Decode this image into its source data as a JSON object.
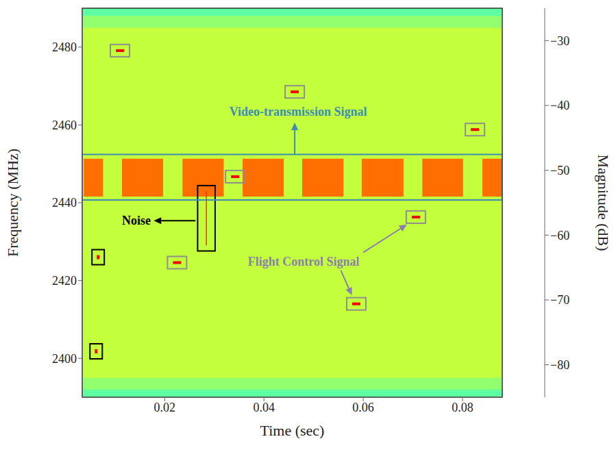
{
  "chart_data": {
    "type": "heatmap",
    "xlabel": "Time (sec)",
    "ylabel": "Frequency (MHz)",
    "xlim": [
      0.0034,
      0.088
    ],
    "xticks": [
      0.02,
      0.04,
      0.06,
      0.08
    ],
    "ylim": [
      2390,
      2490
    ],
    "yticks": [
      2400,
      2420,
      2440,
      2460,
      2480
    ],
    "cells": [
      {
        "x": [
          0.0034,
          0.088
        ],
        "y": [
          2390,
          2490
        ],
        "value": -51
      },
      {
        "x": [
          0.0034,
          0.088
        ],
        "y": [
          2485,
          2488
        ],
        "value": -54
      },
      {
        "x": [
          0.0034,
          0.088
        ],
        "y": [
          2488,
          2490
        ],
        "value": -57
      },
      {
        "x": [
          0.0034,
          0.088
        ],
        "y": [
          2392,
          2395
        ],
        "value": -54
      },
      {
        "x": [
          0.0034,
          0.088
        ],
        "y": [
          2390,
          2392
        ],
        "value": -57
      },
      {
        "x": [
          0.0037,
          0.0076
        ],
        "y": [
          2441.6,
          2451.3
        ],
        "value": -39
      },
      {
        "x": [
          0.0114,
          0.0197
        ],
        "y": [
          2441.6,
          2451.3
        ],
        "value": -39
      },
      {
        "x": [
          0.0236,
          0.0319
        ],
        "y": [
          2441.6,
          2451.3
        ],
        "value": -39
      },
      {
        "x": [
          0.0357,
          0.044
        ],
        "y": [
          2441.6,
          2451.3
        ],
        "value": -39
      },
      {
        "x": [
          0.0477,
          0.056
        ],
        "y": [
          2441.6,
          2451.3
        ],
        "value": -39
      },
      {
        "x": [
          0.0597,
          0.0681
        ],
        "y": [
          2441.6,
          2451.3
        ],
        "value": -39
      },
      {
        "x": [
          0.0719,
          0.0801
        ],
        "y": [
          2441.6,
          2451.3
        ],
        "value": -39
      },
      {
        "x": [
          0.084,
          0.088
        ],
        "y": [
          2441.6,
          2451.3
        ],
        "value": -39
      }
    ],
    "flight_control_signals": [
      {
        "x": 0.011,
        "y": 2479.1,
        "value": -32
      },
      {
        "x": 0.0462,
        "y": 2468.5,
        "value": -32
      },
      {
        "x": 0.0825,
        "y": 2458.8,
        "value": -32
      },
      {
        "x": 0.0342,
        "y": 2446.7,
        "value": -32
      },
      {
        "x": 0.0706,
        "y": 2436.3,
        "value": -32
      },
      {
        "x": 0.0225,
        "y": 2424.6,
        "value": -32
      },
      {
        "x": 0.0586,
        "y": 2414,
        "value": -32
      }
    ],
    "other_signals": [
      {
        "x": 0.0066,
        "y": 2426,
        "value": -33
      },
      {
        "x": 0.0062,
        "y": 2401.8,
        "value": -33
      }
    ],
    "noise": {
      "x": [
        0.0283,
        0.0285
      ],
      "y": [
        2429,
        2443
      ],
      "value": -35
    },
    "annotations": [
      {
        "text": "Video-transmission Signal",
        "x": 0.0469,
        "y": 2463.5,
        "color": "#3a8db5",
        "box": [
          2440.7,
          2452.4
        ],
        "arrows": [
          {
            "from": [
              0.0462,
              2452.4
            ],
            "to": [
              0.0462,
              2460.6
            ]
          }
        ]
      },
      {
        "text": "Noise",
        "x": 0.0172,
        "y": 2435.4,
        "color": "#000000",
        "arrows": [
          {
            "from": [
              0.0262,
              2435.4
            ],
            "to": [
              0.0178,
              2435.4
            ]
          }
        ]
      },
      {
        "text": "Flight Control Signal",
        "x": 0.048,
        "y": 2424.8,
        "color": "#8a7fae",
        "arrows": [
          {
            "from": [
              0.06,
              2427.2
            ],
            "to": [
              0.0688,
              2434.4
            ]
          },
          {
            "from": [
              0.0555,
              2422.6
            ],
            "to": [
              0.0577,
              2416.2
            ]
          }
        ]
      }
    ],
    "colorbar": {
      "label": "Magnitude (dB)",
      "range": [
        -85,
        -25
      ],
      "ticks": [
        {
          "value": -30,
          "label": "−30"
        },
        {
          "value": -40,
          "label": "−40"
        },
        {
          "value": -50,
          "label": "−50"
        },
        {
          "value": -60,
          "label": "−60"
        },
        {
          "value": -70,
          "label": "−70"
        },
        {
          "value": -80,
          "label": "−80"
        }
      ]
    }
  }
}
